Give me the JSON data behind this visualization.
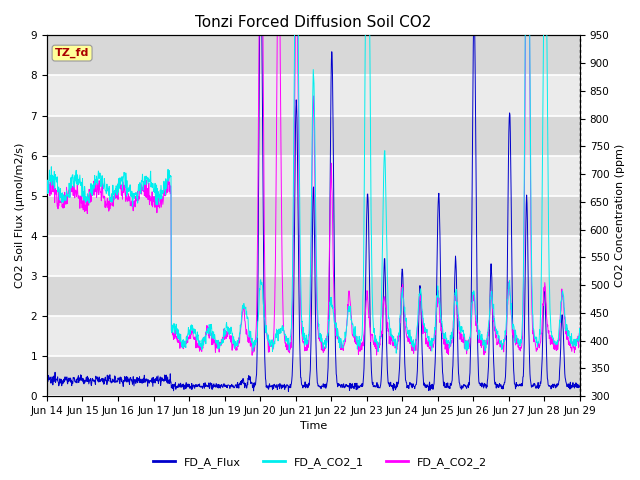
{
  "title": "Tonzi Forced Diffusion Soil CO2",
  "xlabel": "Time",
  "ylabel_left": "CO2 Soil Flux (μmol/m2/s)",
  "ylabel_right": "CO2 Concentration (ppm)",
  "ylim_left": [
    0.0,
    9.0
  ],
  "ylim_right": [
    300,
    950
  ],
  "xtick_labels": [
    "Jun 14",
    "Jun 15",
    "Jun 16",
    "Jun 17",
    "Jun 18",
    "Jun 19",
    "Jun 20",
    "Jun 21",
    "Jun 22",
    "Jun 23",
    "Jun 24",
    "Jun 25",
    "Jun 26",
    "Jun 27",
    "Jun 28",
    "Jun 29"
  ],
  "legend_entries": [
    "FD_A_Flux",
    "FD_A_CO2_1",
    "FD_A_CO2_2"
  ],
  "colors": {
    "FD_A_Flux": "#0000CC",
    "FD_A_CO2_1": "#00EEEE",
    "FD_A_CO2_2": "#FF00FF"
  },
  "tag_label": "TZ_fd",
  "tag_color_bg": "#FFFF99",
  "tag_color_border": "#999999",
  "tag_color_text": "#AA0000",
  "background_light": "#EBEBEB",
  "background_dark": "#D8D8D8",
  "grid_color": "#FFFFFF",
  "title_fontsize": 11,
  "label_fontsize": 8,
  "tick_fontsize": 7.5
}
